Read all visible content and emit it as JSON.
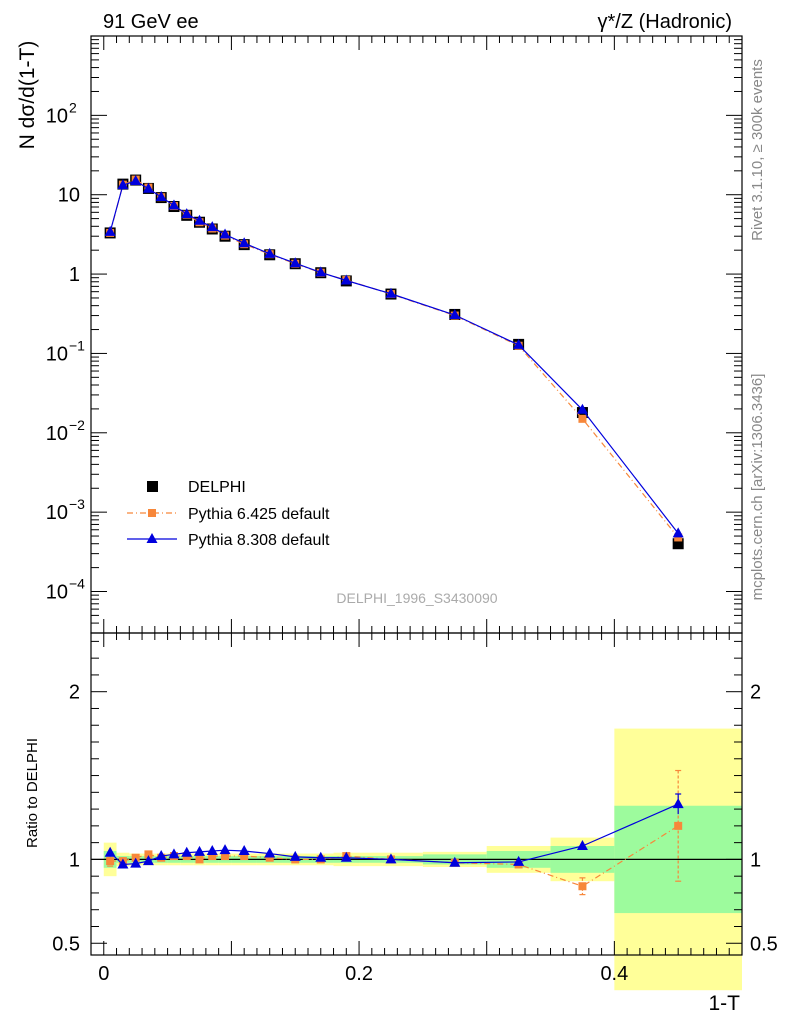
{
  "header": {
    "left": "91 GeV ee",
    "right": "γ*/Z (Hadronic)"
  },
  "side_labels": {
    "rivet": "Rivet 3.1.10, ≥ 300k events",
    "mcplots": "mcplots.cern.ch [arXiv:1306.3436]"
  },
  "watermark": "DELPHI_1996_S3430090",
  "colors": {
    "data": "#000000",
    "pythia6": "#f7873a",
    "pythia8": "#0000dd",
    "band_inner": "#9dfb9d",
    "band_outer": "#ffff99"
  },
  "chart_data": [
    {
      "type": "line",
      "ylabel": "N dσ/d(1-T)",
      "yscale": "log",
      "ylim": [
        3e-05,
        1000
      ],
      "xlim": [
        -0.01,
        0.5
      ],
      "y_ticks": [
        {
          "value": 0.0001,
          "base": "10",
          "exp": "−4"
        },
        {
          "value": 0.001,
          "base": "10",
          "exp": "−3"
        },
        {
          "value": 0.01,
          "base": "10",
          "exp": "−2"
        },
        {
          "value": 0.1,
          "base": "10",
          "exp": "−1"
        },
        {
          "value": 1,
          "base": "1",
          "exp": ""
        },
        {
          "value": 10,
          "base": "10",
          "exp": ""
        },
        {
          "value": 100,
          "base": "10",
          "exp": "2"
        }
      ],
      "legend_position": "bottom-left",
      "legend": [
        {
          "key": "data",
          "label": "DELPHI"
        },
        {
          "key": "pythia6",
          "label": "Pythia 6.425 default"
        },
        {
          "key": "pythia8",
          "label": "Pythia 8.308 default"
        }
      ],
      "x": [
        0.005,
        0.015,
        0.025,
        0.035,
        0.045,
        0.055,
        0.065,
        0.075,
        0.085,
        0.095,
        0.11,
        0.13,
        0.15,
        0.17,
        0.19,
        0.225,
        0.275,
        0.325,
        0.375,
        0.45
      ],
      "series": [
        {
          "key": "data",
          "name": "DELPHI",
          "values": [
            3.3,
            13.6,
            15.3,
            12.0,
            9.2,
            7.1,
            5.5,
            4.5,
            3.7,
            3.0,
            2.35,
            1.75,
            1.35,
            1.04,
            0.82,
            0.56,
            0.31,
            0.13,
            0.018,
            0.0004
          ]
        },
        {
          "key": "pythia6",
          "name": "Pythia 6.425 default",
          "values": [
            3.3,
            13.4,
            15.5,
            12.3,
            9.3,
            7.2,
            5.6,
            4.5,
            3.75,
            3.05,
            2.38,
            1.78,
            1.35,
            1.04,
            0.84,
            0.56,
            0.3,
            0.125,
            0.015,
            0.00048
          ]
        },
        {
          "key": "pythia8",
          "name": "Pythia 8.308 default",
          "values": [
            3.4,
            13.2,
            14.9,
            11.9,
            9.35,
            7.3,
            5.7,
            4.7,
            3.9,
            3.15,
            2.45,
            1.8,
            1.37,
            1.05,
            0.83,
            0.565,
            0.305,
            0.128,
            0.0195,
            0.00054
          ]
        }
      ]
    },
    {
      "type": "line",
      "ylabel": "Ratio to DELPHI",
      "xlabel": "1-T",
      "ylim": [
        0.43,
        2.35
      ],
      "xlim": [
        -0.01,
        0.5
      ],
      "y_ticks": [
        0.5,
        1,
        2
      ],
      "y_tick_labels": [
        "0.5",
        "1",
        "2"
      ],
      "x_ticks": [
        0,
        0.2,
        0.4
      ],
      "x_tick_labels": [
        "0",
        "0.2",
        "0.4"
      ],
      "bins": [
        {
          "lo": 0.0,
          "hi": 0.01,
          "inner": 0.05,
          "outer": 0.1
        },
        {
          "lo": 0.01,
          "hi": 0.02,
          "inner": 0.02,
          "outer": 0.04
        },
        {
          "lo": 0.02,
          "hi": 0.03,
          "inner": 0.02,
          "outer": 0.035
        },
        {
          "lo": 0.03,
          "hi": 0.04,
          "inner": 0.02,
          "outer": 0.035
        },
        {
          "lo": 0.04,
          "hi": 0.05,
          "inner": 0.02,
          "outer": 0.035
        },
        {
          "lo": 0.05,
          "hi": 0.06,
          "inner": 0.02,
          "outer": 0.035
        },
        {
          "lo": 0.06,
          "hi": 0.07,
          "inner": 0.02,
          "outer": 0.035
        },
        {
          "lo": 0.07,
          "hi": 0.08,
          "inner": 0.02,
          "outer": 0.035
        },
        {
          "lo": 0.08,
          "hi": 0.09,
          "inner": 0.02,
          "outer": 0.035
        },
        {
          "lo": 0.09,
          "hi": 0.1,
          "inner": 0.02,
          "outer": 0.035
        },
        {
          "lo": 0.1,
          "hi": 0.12,
          "inner": 0.02,
          "outer": 0.035
        },
        {
          "lo": 0.12,
          "hi": 0.14,
          "inner": 0.02,
          "outer": 0.035
        },
        {
          "lo": 0.14,
          "hi": 0.16,
          "inner": 0.02,
          "outer": 0.035
        },
        {
          "lo": 0.16,
          "hi": 0.18,
          "inner": 0.02,
          "outer": 0.035
        },
        {
          "lo": 0.18,
          "hi": 0.2,
          "inner": 0.02,
          "outer": 0.04
        },
        {
          "lo": 0.2,
          "hi": 0.25,
          "inner": 0.02,
          "outer": 0.04
        },
        {
          "lo": 0.25,
          "hi": 0.3,
          "inner": 0.03,
          "outer": 0.045
        },
        {
          "lo": 0.3,
          "hi": 0.35,
          "inner": 0.05,
          "outer": 0.08
        },
        {
          "lo": 0.35,
          "hi": 0.4,
          "inner": 0.08,
          "outer": 0.13
        },
        {
          "lo": 0.4,
          "hi": 0.5,
          "inner": 0.32,
          "outer": 0.78
        }
      ],
      "x": [
        0.005,
        0.015,
        0.025,
        0.035,
        0.045,
        0.055,
        0.065,
        0.075,
        0.085,
        0.095,
        0.11,
        0.13,
        0.15,
        0.17,
        0.19,
        0.225,
        0.275,
        0.325,
        0.375,
        0.45
      ],
      "series": [
        {
          "key": "pythia6",
          "name": "Pythia 6.425 default",
          "values": [
            0.99,
            0.99,
            1.01,
            1.03,
            1.01,
            1.02,
            1.02,
            1.0,
            1.02,
            1.02,
            1.02,
            1.01,
            1.0,
            1.0,
            1.02,
            1.0,
            0.98,
            0.97,
            0.84,
            1.2
          ],
          "errors": [
            0.03,
            0.02,
            0.02,
            0.02,
            0.02,
            0.02,
            0.02,
            0.02,
            0.02,
            0.02,
            0.02,
            0.02,
            0.02,
            0.02,
            0.02,
            0.02,
            0.02,
            0.02,
            0.05,
            0.33
          ]
        },
        {
          "key": "pythia8",
          "name": "Pythia 8.308 default",
          "values": [
            1.04,
            0.97,
            0.975,
            0.99,
            1.02,
            1.03,
            1.04,
            1.045,
            1.05,
            1.055,
            1.05,
            1.035,
            1.015,
            1.01,
            1.01,
            1.0,
            0.98,
            0.985,
            1.08,
            1.33
          ],
          "errors": [
            0.02,
            0.01,
            0.01,
            0.01,
            0.01,
            0.01,
            0.01,
            0.01,
            0.01,
            0.01,
            0.01,
            0.01,
            0.01,
            0.01,
            0.01,
            0.01,
            0.01,
            0.01,
            0.02,
            0.06
          ]
        }
      ]
    }
  ]
}
